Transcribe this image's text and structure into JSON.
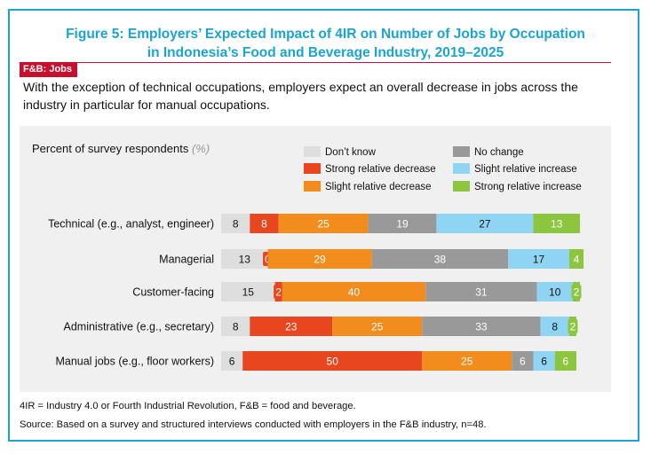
{
  "figure": {
    "title_line1": "Figure 5: Employers’ Expected Impact of 4IR on Number of Jobs by Occupation",
    "title_line2": "in Indonesia’s Food and Beverage Industry, 2019–2025",
    "tag": "F&B: Jobs",
    "subtitle": "With the exception of technical occupations, employers expect an overall decrease in jobs across the industry in particular for manual occupations."
  },
  "footnote": "4IR = Industry 4.0 or Fourth Industrial Revolution, F&B = food and beverage.",
  "source": "Source: Based on a survey and structured interviews conducted with employers in the F&B industry, n=48.",
  "chart_data": {
    "type": "bar",
    "orientation": "horizontal",
    "stacked": true,
    "ylabel_prefix": "Percent of survey respondents",
    "ylabel_unit": "(%)",
    "categories": [
      "Technical (e.g., analyst, engineer)",
      "Managerial",
      "Customer-facing",
      "Administrative (e.g., secretary)",
      "Manual jobs (e.g., floor workers)"
    ],
    "series": [
      {
        "name": "Don’t know",
        "color": "#dedede",
        "text_color": "#111111",
        "values": [
          8,
          13,
          15,
          8,
          6
        ]
      },
      {
        "name": "Strong relative decrease",
        "color": "#e8461e",
        "text_color": "#ffffff",
        "values": [
          8,
          0,
          2,
          23,
          50
        ]
      },
      {
        "name": "Slight relative decrease",
        "color": "#f28c1c",
        "text_color": "#ffffff",
        "values": [
          25,
          29,
          40,
          25,
          25
        ]
      },
      {
        "name": "No change",
        "color": "#999999",
        "text_color": "#ffffff",
        "values": [
          19,
          38,
          31,
          33,
          6
        ]
      },
      {
        "name": "Slight relative increase",
        "color": "#8fd4f2",
        "text_color": "#111111",
        "values": [
          27,
          17,
          10,
          8,
          6
        ]
      },
      {
        "name": "Strong relative increase",
        "color": "#8cc63f",
        "text_color": "#ffffff",
        "values": [
          13,
          4,
          2,
          2,
          6
        ]
      }
    ],
    "legend_order": [
      "Don’t know",
      "No change",
      "Strong relative decrease",
      "Slight relative increase",
      "Slight relative decrease",
      "Strong relative increase"
    ],
    "xlim": [
      0,
      100
    ]
  }
}
